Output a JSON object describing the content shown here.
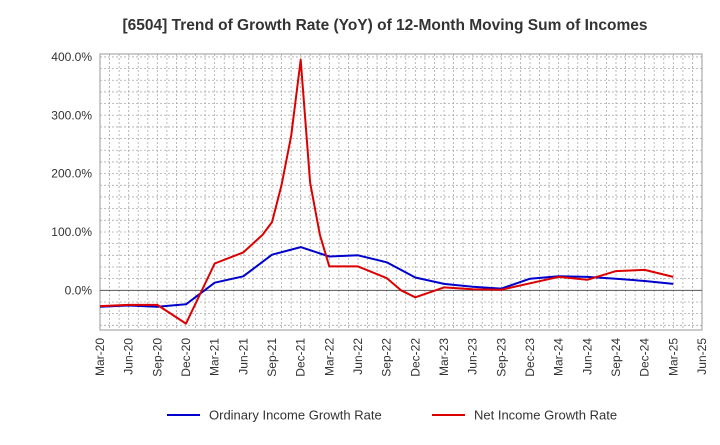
{
  "chart_data": {
    "type": "line",
    "title": "[6504]  Trend of Growth Rate (YoY) of 12-Month Moving Sum of Incomes",
    "xlabel": "",
    "ylabel": "",
    "x_tick_labels": [
      "Mar-20",
      "Jun-20",
      "Sep-20",
      "Dec-20",
      "Mar-21",
      "Jun-21",
      "Sep-21",
      "Dec-21",
      "Mar-22",
      "Jun-22",
      "Sep-22",
      "Dec-22",
      "Mar-23",
      "Jun-23",
      "Sep-23",
      "Dec-23",
      "Mar-24",
      "Jun-24",
      "Sep-24",
      "Dec-24",
      "Mar-25",
      "Jun-25"
    ],
    "y_ticks": [
      0,
      100,
      200,
      300,
      400
    ],
    "y_tick_labels": [
      "0.0%",
      "100.0%",
      "200.0%",
      "300.0%",
      "400.0%"
    ],
    "ylim": [
      -68,
      405
    ],
    "grid": true,
    "legend_position": "bottom",
    "series": [
      {
        "name": "Ordinary Income Growth Rate",
        "color": "#0000cc",
        "points": [
          {
            "x": 0,
            "y": -28
          },
          {
            "x": 1,
            "y": -26
          },
          {
            "x": 2,
            "y": -28
          },
          {
            "x": 3,
            "y": -24
          },
          {
            "x": 4,
            "y": 13
          },
          {
            "x": 5,
            "y": 24
          },
          {
            "x": 6,
            "y": 61
          },
          {
            "x": 7,
            "y": 74
          },
          {
            "x": 8,
            "y": 58
          },
          {
            "x": 9,
            "y": 60
          },
          {
            "x": 10,
            "y": 48
          },
          {
            "x": 11,
            "y": 22
          },
          {
            "x": 12,
            "y": 11
          },
          {
            "x": 13,
            "y": 6
          },
          {
            "x": 14,
            "y": 3
          },
          {
            "x": 15,
            "y": 20
          },
          {
            "x": 16,
            "y": 24
          },
          {
            "x": 17,
            "y": 23
          },
          {
            "x": 18,
            "y": 20
          },
          {
            "x": 19,
            "y": 16
          },
          {
            "x": 20,
            "y": 11
          }
        ]
      },
      {
        "name": "Net Income Growth Rate",
        "color": "#dd0000",
        "points": [
          {
            "x": 0,
            "y": -27
          },
          {
            "x": 1,
            "y": -25
          },
          {
            "x": 2,
            "y": -25
          },
          {
            "x": 3,
            "y": -57
          },
          {
            "x": 4,
            "y": 46
          },
          {
            "x": 5,
            "y": 65
          },
          {
            "x": 5.67,
            "y": 95
          },
          {
            "x": 6,
            "y": 117
          },
          {
            "x": 6.33,
            "y": 180
          },
          {
            "x": 6.67,
            "y": 265
          },
          {
            "x": 7,
            "y": 395
          },
          {
            "x": 7.33,
            "y": 185
          },
          {
            "x": 7.67,
            "y": 95
          },
          {
            "x": 8,
            "y": 41
          },
          {
            "x": 9,
            "y": 41
          },
          {
            "x": 10,
            "y": 21
          },
          {
            "x": 10.5,
            "y": 0
          },
          {
            "x": 11,
            "y": -12
          },
          {
            "x": 12,
            "y": 5
          },
          {
            "x": 13,
            "y": 2
          },
          {
            "x": 14,
            "y": 1
          },
          {
            "x": 15,
            "y": 12
          },
          {
            "x": 16,
            "y": 23
          },
          {
            "x": 17,
            "y": 18
          },
          {
            "x": 18,
            "y": 33
          },
          {
            "x": 19,
            "y": 35
          },
          {
            "x": 20,
            "y": 23
          }
        ]
      }
    ]
  }
}
